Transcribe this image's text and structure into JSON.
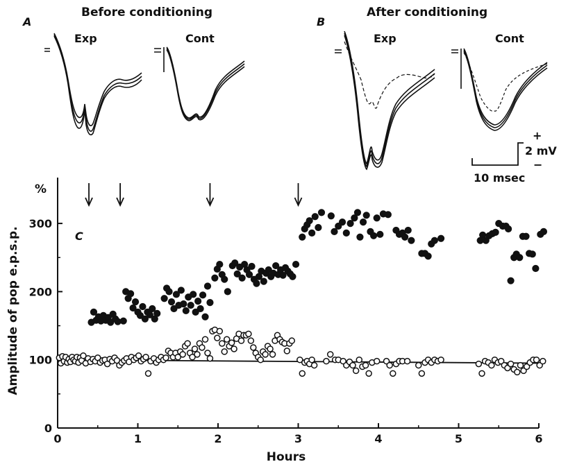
{
  "panels": {
    "A": {
      "letter": "A",
      "title": "Before conditioning",
      "exp_label": "Exp",
      "cont_label": "Cont"
    },
    "B": {
      "letter": "B",
      "title": "After conditioning",
      "exp_label": "Exp",
      "cont_label": "Cont"
    }
  },
  "scale_bar": {
    "time_label": "10 msec",
    "voltage_label": "2 mV",
    "plus": "+",
    "minus": "−"
  },
  "chart_data": {
    "type": "scatter",
    "panel_label": "C",
    "xlabel": "Hours",
    "ylabel": "Amplitude of pop e.p.s.p.",
    "y_unit": "%",
    "xlim": [
      0,
      6.1
    ],
    "ylim": [
      0,
      330
    ],
    "x_ticks": [
      0,
      1,
      2,
      3,
      4,
      5,
      6
    ],
    "y_ticks": [
      0,
      100,
      200,
      300
    ],
    "conditioning_times": [
      0.39,
      0.78,
      1.9,
      3.0
    ],
    "baseline": {
      "y_start": 100,
      "y_end": 95
    },
    "series": [
      {
        "marker": "filled",
        "points": [
          [
            0.42,
            155
          ],
          [
            0.45,
            170
          ],
          [
            0.48,
            158
          ],
          [
            0.51,
            163
          ],
          [
            0.54,
            157
          ],
          [
            0.57,
            165
          ],
          [
            0.6,
            158
          ],
          [
            0.63,
            162
          ],
          [
            0.66,
            155
          ],
          [
            0.69,
            167
          ],
          [
            0.72,
            160
          ],
          [
            0.75,
            156
          ],
          [
            0.82,
            157
          ],
          [
            0.85,
            200
          ],
          [
            0.88,
            190
          ],
          [
            0.91,
            197
          ],
          [
            0.94,
            176
          ],
          [
            0.97,
            185
          ],
          [
            1.0,
            170
          ],
          [
            1.03,
            165
          ],
          [
            1.06,
            178
          ],
          [
            1.09,
            160
          ],
          [
            1.12,
            170
          ],
          [
            1.15,
            166
          ],
          [
            1.18,
            175
          ],
          [
            1.21,
            160
          ],
          [
            1.24,
            168
          ],
          [
            1.33,
            190
          ],
          [
            1.36,
            205
          ],
          [
            1.39,
            200
          ],
          [
            1.42,
            185
          ],
          [
            1.45,
            175
          ],
          [
            1.48,
            196
          ],
          [
            1.51,
            180
          ],
          [
            1.54,
            202
          ],
          [
            1.57,
            182
          ],
          [
            1.6,
            172
          ],
          [
            1.63,
            192
          ],
          [
            1.66,
            180
          ],
          [
            1.69,
            196
          ],
          [
            1.72,
            170
          ],
          [
            1.75,
            186
          ],
          [
            1.78,
            175
          ],
          [
            1.81,
            195
          ],
          [
            1.84,
            163
          ],
          [
            1.87,
            208
          ],
          [
            1.9,
            184
          ],
          [
            1.96,
            220
          ],
          [
            1.99,
            233
          ],
          [
            2.02,
            240
          ],
          [
            2.05,
            225
          ],
          [
            2.08,
            218
          ],
          [
            2.12,
            200
          ],
          [
            2.18,
            238
          ],
          [
            2.21,
            242
          ],
          [
            2.24,
            226
          ],
          [
            2.27,
            236
          ],
          [
            2.3,
            220
          ],
          [
            2.33,
            240
          ],
          [
            2.36,
            232
          ],
          [
            2.39,
            225
          ],
          [
            2.42,
            237
          ],
          [
            2.45,
            218
          ],
          [
            2.48,
            212
          ],
          [
            2.51,
            222
          ],
          [
            2.54,
            230
          ],
          [
            2.57,
            215
          ],
          [
            2.6,
            227
          ],
          [
            2.63,
            232
          ],
          [
            2.66,
            222
          ],
          [
            2.69,
            227
          ],
          [
            2.72,
            238
          ],
          [
            2.75,
            225
          ],
          [
            2.78,
            232
          ],
          [
            2.81,
            224
          ],
          [
            2.84,
            235
          ],
          [
            2.87,
            230
          ],
          [
            2.9,
            226
          ],
          [
            2.93,
            222
          ],
          [
            2.97,
            240
          ],
          [
            3.05,
            280
          ],
          [
            3.08,
            292
          ],
          [
            3.11,
            298
          ],
          [
            3.14,
            304
          ],
          [
            3.17,
            286
          ],
          [
            3.21,
            310
          ],
          [
            3.25,
            294
          ],
          [
            3.29,
            316
          ],
          [
            3.41,
            311
          ],
          [
            3.45,
            288
          ],
          [
            3.5,
            296
          ],
          [
            3.55,
            302
          ],
          [
            3.6,
            286
          ],
          [
            3.65,
            300
          ],
          [
            3.7,
            308
          ],
          [
            3.74,
            316
          ],
          [
            3.77,
            280
          ],
          [
            3.81,
            302
          ],
          [
            3.85,
            312
          ],
          [
            3.9,
            288
          ],
          [
            3.94,
            282
          ],
          [
            3.98,
            308
          ],
          [
            4.02,
            284
          ],
          [
            4.06,
            314
          ],
          [
            4.12,
            313
          ],
          [
            4.22,
            290
          ],
          [
            4.26,
            284
          ],
          [
            4.3,
            286
          ],
          [
            4.33,
            280
          ],
          [
            4.37,
            290
          ],
          [
            4.41,
            275
          ],
          [
            4.54,
            256
          ],
          [
            4.58,
            256
          ],
          [
            4.62,
            252
          ],
          [
            4.66,
            270
          ],
          [
            4.7,
            275
          ],
          [
            4.78,
            278
          ],
          [
            5.27,
            275
          ],
          [
            5.3,
            283
          ],
          [
            5.34,
            275
          ],
          [
            5.38,
            282
          ],
          [
            5.42,
            285
          ],
          [
            5.46,
            287
          ],
          [
            5.5,
            300
          ],
          [
            5.55,
            296
          ],
          [
            5.59,
            296
          ],
          [
            5.62,
            292
          ],
          [
            5.65,
            216
          ],
          [
            5.69,
            250
          ],
          [
            5.72,
            255
          ],
          [
            5.76,
            250
          ],
          [
            5.8,
            281
          ],
          [
            5.84,
            281
          ],
          [
            5.88,
            256
          ],
          [
            5.92,
            255
          ],
          [
            5.96,
            234
          ],
          [
            6.02,
            284
          ],
          [
            6.06,
            288
          ]
        ]
      },
      {
        "marker": "open",
        "points": [
          [
            0.02,
            103
          ],
          [
            0.04,
            95
          ],
          [
            0.06,
            105
          ],
          [
            0.08,
            98
          ],
          [
            0.1,
            104
          ],
          [
            0.12,
            96
          ],
          [
            0.14,
            101
          ],
          [
            0.16,
            97
          ],
          [
            0.18,
            104
          ],
          [
            0.2,
            100
          ],
          [
            0.22,
            98
          ],
          [
            0.24,
            104
          ],
          [
            0.26,
            96
          ],
          [
            0.28,
            103
          ],
          [
            0.3,
            99
          ],
          [
            0.32,
            106
          ],
          [
            0.35,
            95
          ],
          [
            0.38,
            102
          ],
          [
            0.41,
            97
          ],
          [
            0.44,
            101
          ],
          [
            0.47,
            98
          ],
          [
            0.5,
            103
          ],
          [
            0.53,
            96
          ],
          [
            0.56,
            99
          ],
          [
            0.59,
            100
          ],
          [
            0.62,
            94
          ],
          [
            0.65,
            101
          ],
          [
            0.68,
            98
          ],
          [
            0.71,
            103
          ],
          [
            0.74,
            99
          ],
          [
            0.77,
            92
          ],
          [
            0.8,
            96
          ],
          [
            0.83,
            99
          ],
          [
            0.86,
            102
          ],
          [
            0.89,
            97
          ],
          [
            0.92,
            104
          ],
          [
            0.95,
            100
          ],
          [
            0.98,
            103
          ],
          [
            1.01,
            106
          ],
          [
            1.04,
            98
          ],
          [
            1.07,
            101
          ],
          [
            1.1,
            104
          ],
          [
            1.13,
            80
          ],
          [
            1.16,
            98
          ],
          [
            1.2,
            102
          ],
          [
            1.23,
            96
          ],
          [
            1.26,
            100
          ],
          [
            1.29,
            104
          ],
          [
            1.32,
            100
          ],
          [
            1.35,
            103
          ],
          [
            1.38,
            113
          ],
          [
            1.41,
            110
          ],
          [
            1.44,
            104
          ],
          [
            1.47,
            110
          ],
          [
            1.5,
            104
          ],
          [
            1.53,
            112
          ],
          [
            1.56,
            108
          ],
          [
            1.59,
            120
          ],
          [
            1.62,
            124
          ],
          [
            1.65,
            110
          ],
          [
            1.68,
            104
          ],
          [
            1.71,
            116
          ],
          [
            1.74,
            108
          ],
          [
            1.77,
            124
          ],
          [
            1.8,
            118
          ],
          [
            1.84,
            130
          ],
          [
            1.87,
            110
          ],
          [
            1.9,
            102
          ],
          [
            1.93,
            142
          ],
          [
            1.96,
            144
          ],
          [
            1.99,
            132
          ],
          [
            2.02,
            142
          ],
          [
            2.05,
            124
          ],
          [
            2.08,
            112
          ],
          [
            2.11,
            130
          ],
          [
            2.14,
            120
          ],
          [
            2.17,
            125
          ],
          [
            2.2,
            116
          ],
          [
            2.23,
            131
          ],
          [
            2.26,
            138
          ],
          [
            2.29,
            128
          ],
          [
            2.32,
            136
          ],
          [
            2.35,
            136
          ],
          [
            2.38,
            138
          ],
          [
            2.41,
            128
          ],
          [
            2.44,
            118
          ],
          [
            2.47,
            110
          ],
          [
            2.5,
            104
          ],
          [
            2.53,
            100
          ],
          [
            2.56,
            112
          ],
          [
            2.59,
            108
          ],
          [
            2.62,
            120
          ],
          [
            2.65,
            116
          ],
          [
            2.68,
            108
          ],
          [
            2.71,
            128
          ],
          [
            2.74,
            136
          ],
          [
            2.77,
            130
          ],
          [
            2.8,
            126
          ],
          [
            2.83,
            124
          ],
          [
            2.86,
            113
          ],
          [
            2.89,
            124
          ],
          [
            2.92,
            128
          ],
          [
            3.02,
            100
          ],
          [
            3.05,
            80
          ],
          [
            3.08,
            96
          ],
          [
            3.11,
            98
          ],
          [
            3.14,
            94
          ],
          [
            3.17,
            100
          ],
          [
            3.2,
            92
          ],
          [
            3.35,
            98
          ],
          [
            3.4,
            108
          ],
          [
            3.46,
            100
          ],
          [
            3.5,
            100
          ],
          [
            3.56,
            98
          ],
          [
            3.6,
            92
          ],
          [
            3.64,
            97
          ],
          [
            3.68,
            92
          ],
          [
            3.72,
            84
          ],
          [
            3.76,
            100
          ],
          [
            3.8,
            90
          ],
          [
            3.84,
            92
          ],
          [
            3.88,
            80
          ],
          [
            3.92,
            96
          ],
          [
            3.98,
            98
          ],
          [
            4.1,
            98
          ],
          [
            4.14,
            92
          ],
          [
            4.18,
            80
          ],
          [
            4.22,
            94
          ],
          [
            4.26,
            98
          ],
          [
            4.3,
            98
          ],
          [
            4.36,
            98
          ],
          [
            4.5,
            92
          ],
          [
            4.54,
            80
          ],
          [
            4.58,
            96
          ],
          [
            4.62,
            100
          ],
          [
            4.66,
            96
          ],
          [
            4.7,
            100
          ],
          [
            4.74,
            98
          ],
          [
            4.78,
            100
          ],
          [
            5.25,
            94
          ],
          [
            5.29,
            80
          ],
          [
            5.33,
            98
          ],
          [
            5.37,
            96
          ],
          [
            5.41,
            92
          ],
          [
            5.45,
            100
          ],
          [
            5.49,
            96
          ],
          [
            5.53,
            98
          ],
          [
            5.57,
            92
          ],
          [
            5.61,
            88
          ],
          [
            5.65,
            94
          ],
          [
            5.69,
            86
          ],
          [
            5.73,
            82
          ],
          [
            5.77,
            92
          ],
          [
            5.81,
            84
          ],
          [
            5.85,
            90
          ],
          [
            5.89,
            96
          ],
          [
            5.93,
            100
          ],
          [
            5.97,
            100
          ],
          [
            6.01,
            92
          ],
          [
            6.05,
            98
          ]
        ]
      }
    ]
  }
}
